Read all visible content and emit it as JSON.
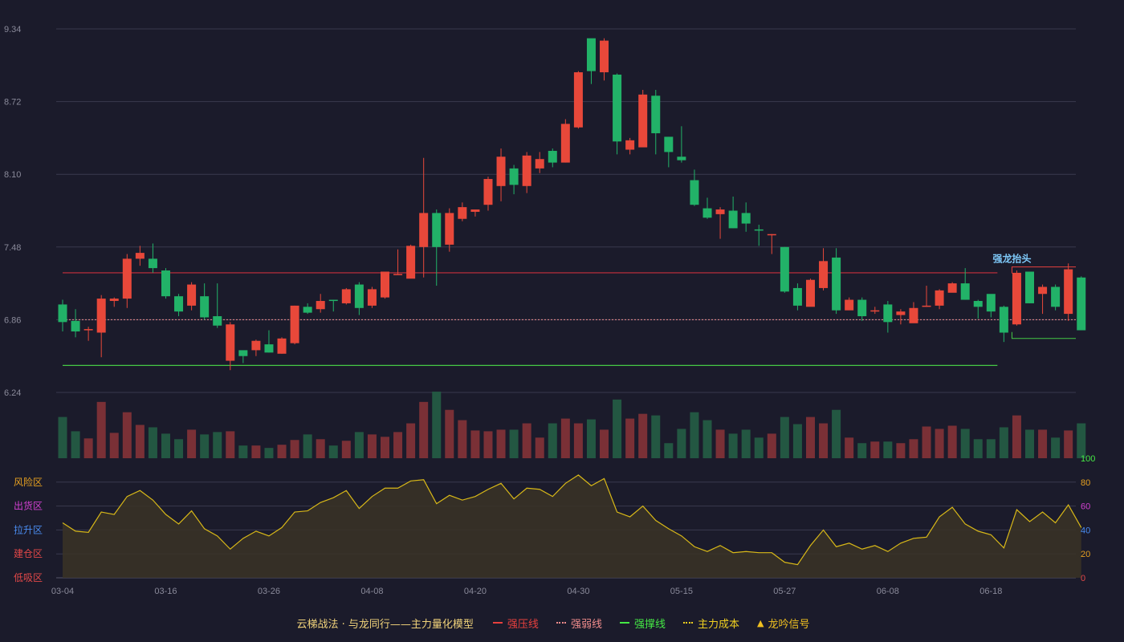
{
  "legend": {
    "title": "云梯战法 · 与龙同行——主力量化模型",
    "items": [
      {
        "label": "强压线",
        "color": "#e8403e",
        "style": "solid"
      },
      {
        "label": "强弱线",
        "color": "#f08c8c",
        "style": "dotted"
      },
      {
        "label": "强撑线",
        "color": "#45e845",
        "style": "solid"
      },
      {
        "label": "主力成本",
        "color": "#f0d020",
        "style": "dotted"
      },
      {
        "label": "龙吟信号",
        "color": "#f0c020",
        "style": "triangle"
      }
    ]
  },
  "colors": {
    "up": "#e8483a",
    "down": "#22b268",
    "vol_up": "#7a3036",
    "vol_down": "#235742",
    "background": "#1b1b2b",
    "grid": "#3a3a4e",
    "line": "#d8b818"
  },
  "chart_data": [
    {
      "type": "candlestick",
      "y_ticks": [
        "9.34",
        "8.72",
        "8.10",
        "7.48",
        "6.86",
        "6.24"
      ],
      "ylim": [
        6.24,
        9.34
      ],
      "x_tick_labels": [
        "03-04",
        "03-16",
        "03-26",
        "04-08",
        "04-20",
        "04-30",
        "05-15",
        "05-27",
        "06-08",
        "06-18"
      ],
      "x_tick_positions": [
        0,
        8,
        16,
        24,
        32,
        40,
        48,
        56,
        64,
        72
      ],
      "candles": [
        [
          6.99,
          6.84,
          7.03,
          6.76
        ],
        [
          6.85,
          6.76,
          6.95,
          6.71
        ],
        [
          6.77,
          6.78,
          6.8,
          6.68
        ],
        [
          6.75,
          7.04,
          7.07,
          6.54
        ],
        [
          7.02,
          7.04,
          7.05,
          6.97
        ],
        [
          7.04,
          7.38,
          7.42,
          6.96
        ],
        [
          7.38,
          7.43,
          7.49,
          7.32
        ],
        [
          7.38,
          7.3,
          7.51,
          7.26
        ],
        [
          7.28,
          7.06,
          7.3,
          7.04
        ],
        [
          7.06,
          6.93,
          7.08,
          6.89
        ],
        [
          6.98,
          7.16,
          7.18,
          6.94
        ],
        [
          7.06,
          6.88,
          7.17,
          6.86
        ],
        [
          6.89,
          6.81,
          7.17,
          6.79
        ],
        [
          6.51,
          6.82,
          6.84,
          6.43
        ],
        [
          6.6,
          6.55,
          6.58,
          6.49
        ],
        [
          6.6,
          6.68,
          6.69,
          6.55
        ],
        [
          6.65,
          6.58,
          6.77,
          6.58
        ],
        [
          6.57,
          6.7,
          6.71,
          6.57
        ],
        [
          6.66,
          6.98,
          6.98,
          6.65
        ],
        [
          6.97,
          6.92,
          7.0,
          6.91
        ],
        [
          6.95,
          7.02,
          7.08,
          6.92
        ],
        [
          7.03,
          7.02,
          7.03,
          6.93
        ],
        [
          7.0,
          7.12,
          7.13,
          6.99
        ],
        [
          7.16,
          6.96,
          7.18,
          6.9
        ],
        [
          6.98,
          7.12,
          7.14,
          6.96
        ],
        [
          7.05,
          7.27,
          7.26,
          7.04
        ],
        [
          7.25,
          7.25,
          7.46,
          7.25
        ],
        [
          7.21,
          7.49,
          7.5,
          7.24
        ],
        [
          7.48,
          7.77,
          8.24,
          7.22
        ],
        [
          7.77,
          7.48,
          7.8,
          7.15
        ],
        [
          7.5,
          7.77,
          7.81,
          7.44
        ],
        [
          7.72,
          7.82,
          7.86,
          7.7
        ],
        [
          7.78,
          7.8,
          7.8,
          7.74
        ],
        [
          7.84,
          8.06,
          8.08,
          7.79
        ],
        [
          8.0,
          8.25,
          8.32,
          7.87
        ],
        [
          8.15,
          8.01,
          8.18,
          7.93
        ],
        [
          8.0,
          8.26,
          8.29,
          7.94
        ],
        [
          8.15,
          8.23,
          8.29,
          8.11
        ],
        [
          8.3,
          8.2,
          8.32,
          8.16
        ],
        [
          8.2,
          8.53,
          8.57,
          8.2
        ],
        [
          8.5,
          8.97,
          8.98,
          8.49
        ],
        [
          9.26,
          8.98,
          9.25,
          8.87
        ],
        [
          8.97,
          9.24,
          9.26,
          8.9
        ],
        [
          8.95,
          8.38,
          8.96,
          8.27
        ],
        [
          8.31,
          8.39,
          8.41,
          8.27
        ],
        [
          8.33,
          8.78,
          8.82,
          8.34
        ],
        [
          8.77,
          8.45,
          8.82,
          8.27
        ],
        [
          8.42,
          8.29,
          8.42,
          8.16
        ],
        [
          8.25,
          8.22,
          8.51,
          8.2
        ],
        [
          8.05,
          7.84,
          8.14,
          7.83
        ],
        [
          7.81,
          7.73,
          7.9,
          7.72
        ],
        [
          7.76,
          7.8,
          7.82,
          7.55
        ],
        [
          7.79,
          7.64,
          7.91,
          7.64
        ],
        [
          7.77,
          7.68,
          7.86,
          7.61
        ],
        [
          7.63,
          7.62,
          7.67,
          7.49
        ],
        [
          7.58,
          7.59,
          7.59,
          7.42
        ],
        [
          7.48,
          7.1,
          7.48,
          7.09
        ],
        [
          7.13,
          6.98,
          7.17,
          6.94
        ],
        [
          6.97,
          7.2,
          7.21,
          6.98
        ],
        [
          7.13,
          7.36,
          7.47,
          7.11
        ],
        [
          7.39,
          6.94,
          7.47,
          6.91
        ],
        [
          6.94,
          7.03,
          7.05,
          6.96
        ],
        [
          7.03,
          6.89,
          7.05,
          6.85
        ],
        [
          6.94,
          6.94,
          6.97,
          6.91
        ],
        [
          6.99,
          6.84,
          7.02,
          6.75
        ],
        [
          6.9,
          6.93,
          6.95,
          6.82
        ],
        [
          6.83,
          6.96,
          7.01,
          6.85
        ],
        [
          6.98,
          6.98,
          7.15,
          6.97
        ],
        [
          6.98,
          7.11,
          7.12,
          6.95
        ],
        [
          7.09,
          7.17,
          7.18,
          7.1
        ],
        [
          7.17,
          7.03,
          7.3,
          7.03
        ],
        [
          7.02,
          6.97,
          7.03,
          6.87
        ],
        [
          7.08,
          6.93,
          7.07,
          6.88
        ],
        [
          6.97,
          6.75,
          6.98,
          6.67
        ],
        [
          6.82,
          7.26,
          7.28,
          6.81
        ],
        [
          7.27,
          7.0,
          7.26,
          7.0
        ],
        [
          7.08,
          7.14,
          7.16,
          6.91
        ],
        [
          7.14,
          6.97,
          7.16,
          6.94
        ],
        [
          6.91,
          7.29,
          7.34,
          6.85
        ],
        [
          7.22,
          6.77,
          7.23,
          6.79
        ]
      ],
      "lines": {
        "强压线": 7.26,
        "强弱线": 6.86,
        "强撑线": 6.47,
        "recent_box": {
          "top": 7.31,
          "bottom": 6.7,
          "start": 74
        }
      },
      "annotation": "强龙抬头"
    },
    {
      "type": "bar",
      "name": "volume",
      "values": [
        52,
        34,
        25,
        71,
        32,
        58,
        42,
        39,
        31,
        24,
        36,
        30,
        33,
        34,
        16,
        16,
        13,
        17,
        23,
        30,
        24,
        16,
        22,
        33,
        30,
        27,
        33,
        44,
        71,
        84,
        61,
        48,
        35,
        34,
        36,
        36,
        44,
        26,
        44,
        50,
        44,
        49,
        36,
        74,
        50,
        56,
        54,
        19,
        37,
        58,
        48,
        36,
        31,
        36,
        26,
        31,
        52,
        43,
        52,
        44,
        61,
        26,
        19,
        21,
        21,
        19,
        24,
        40,
        37,
        41,
        37,
        24,
        24,
        39,
        54,
        36,
        36,
        26,
        35,
        44
      ]
    },
    {
      "type": "area",
      "name": "indicator",
      "ylim": [
        0,
        100
      ],
      "y_ticks": [
        "100",
        "80",
        "60",
        "40",
        "20",
        "0"
      ],
      "zones": [
        {
          "label": "风险区",
          "color": "#e6a020"
        },
        {
          "label": "出货区",
          "color": "#d040d0"
        },
        {
          "label": "拉升区",
          "color": "#4a8cf0"
        },
        {
          "label": "建仓区",
          "color": "#e24848"
        },
        {
          "label": "低吸区",
          "color": "#e24848"
        }
      ],
      "values": [
        46,
        39,
        38,
        55,
        53,
        68,
        73,
        65,
        53,
        45,
        56,
        41,
        35,
        24,
        33,
        39,
        35,
        42,
        55,
        56,
        63,
        67,
        73,
        58,
        68,
        75,
        75,
        81,
        82,
        62,
        69,
        65,
        68,
        74,
        79,
        66,
        75,
        74,
        68,
        79,
        86,
        77,
        83,
        55,
        51,
        60,
        48,
        41,
        35,
        26,
        22,
        27,
        21,
        22,
        21,
        21,
        13,
        11,
        27,
        40,
        26,
        29,
        24,
        27,
        22,
        29,
        33,
        34,
        51,
        59,
        45,
        39,
        36,
        25,
        57,
        47,
        55,
        46,
        61,
        42
      ]
    }
  ]
}
